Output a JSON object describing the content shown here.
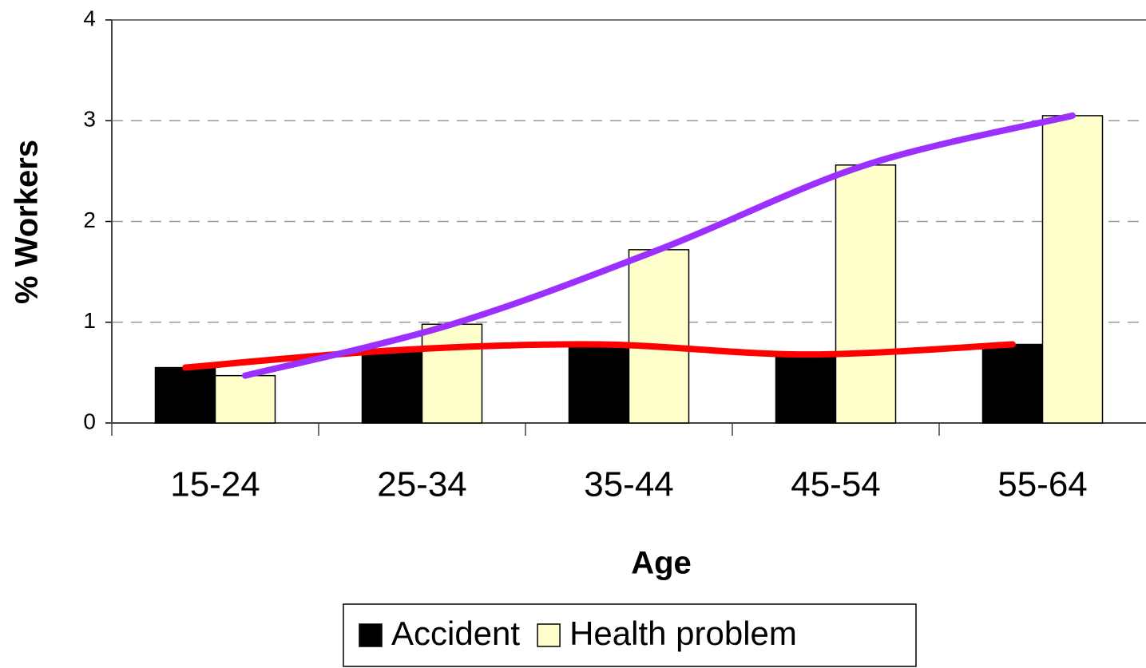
{
  "chart_data": {
    "type": "bar",
    "x_label": "Age",
    "y_label": "% Workers",
    "categories": [
      "15-24",
      "25-34",
      "35-44",
      "45-54",
      "55-64"
    ],
    "series": [
      {
        "name": "Accident",
        "color": "#000000",
        "trend_color": "#ff0000",
        "values": [
          0.55,
          0.72,
          0.78,
          0.68,
          0.78
        ]
      },
      {
        "name": "Health problem",
        "color": "#ffffcc",
        "trend_color": "#9b30ff",
        "values": [
          0.47,
          0.98,
          1.72,
          2.56,
          3.05
        ]
      }
    ],
    "ylim": [
      0,
      4
    ],
    "yticks": [
      0,
      1,
      2,
      3,
      4
    ],
    "grid": true,
    "legend": "bottom"
  }
}
